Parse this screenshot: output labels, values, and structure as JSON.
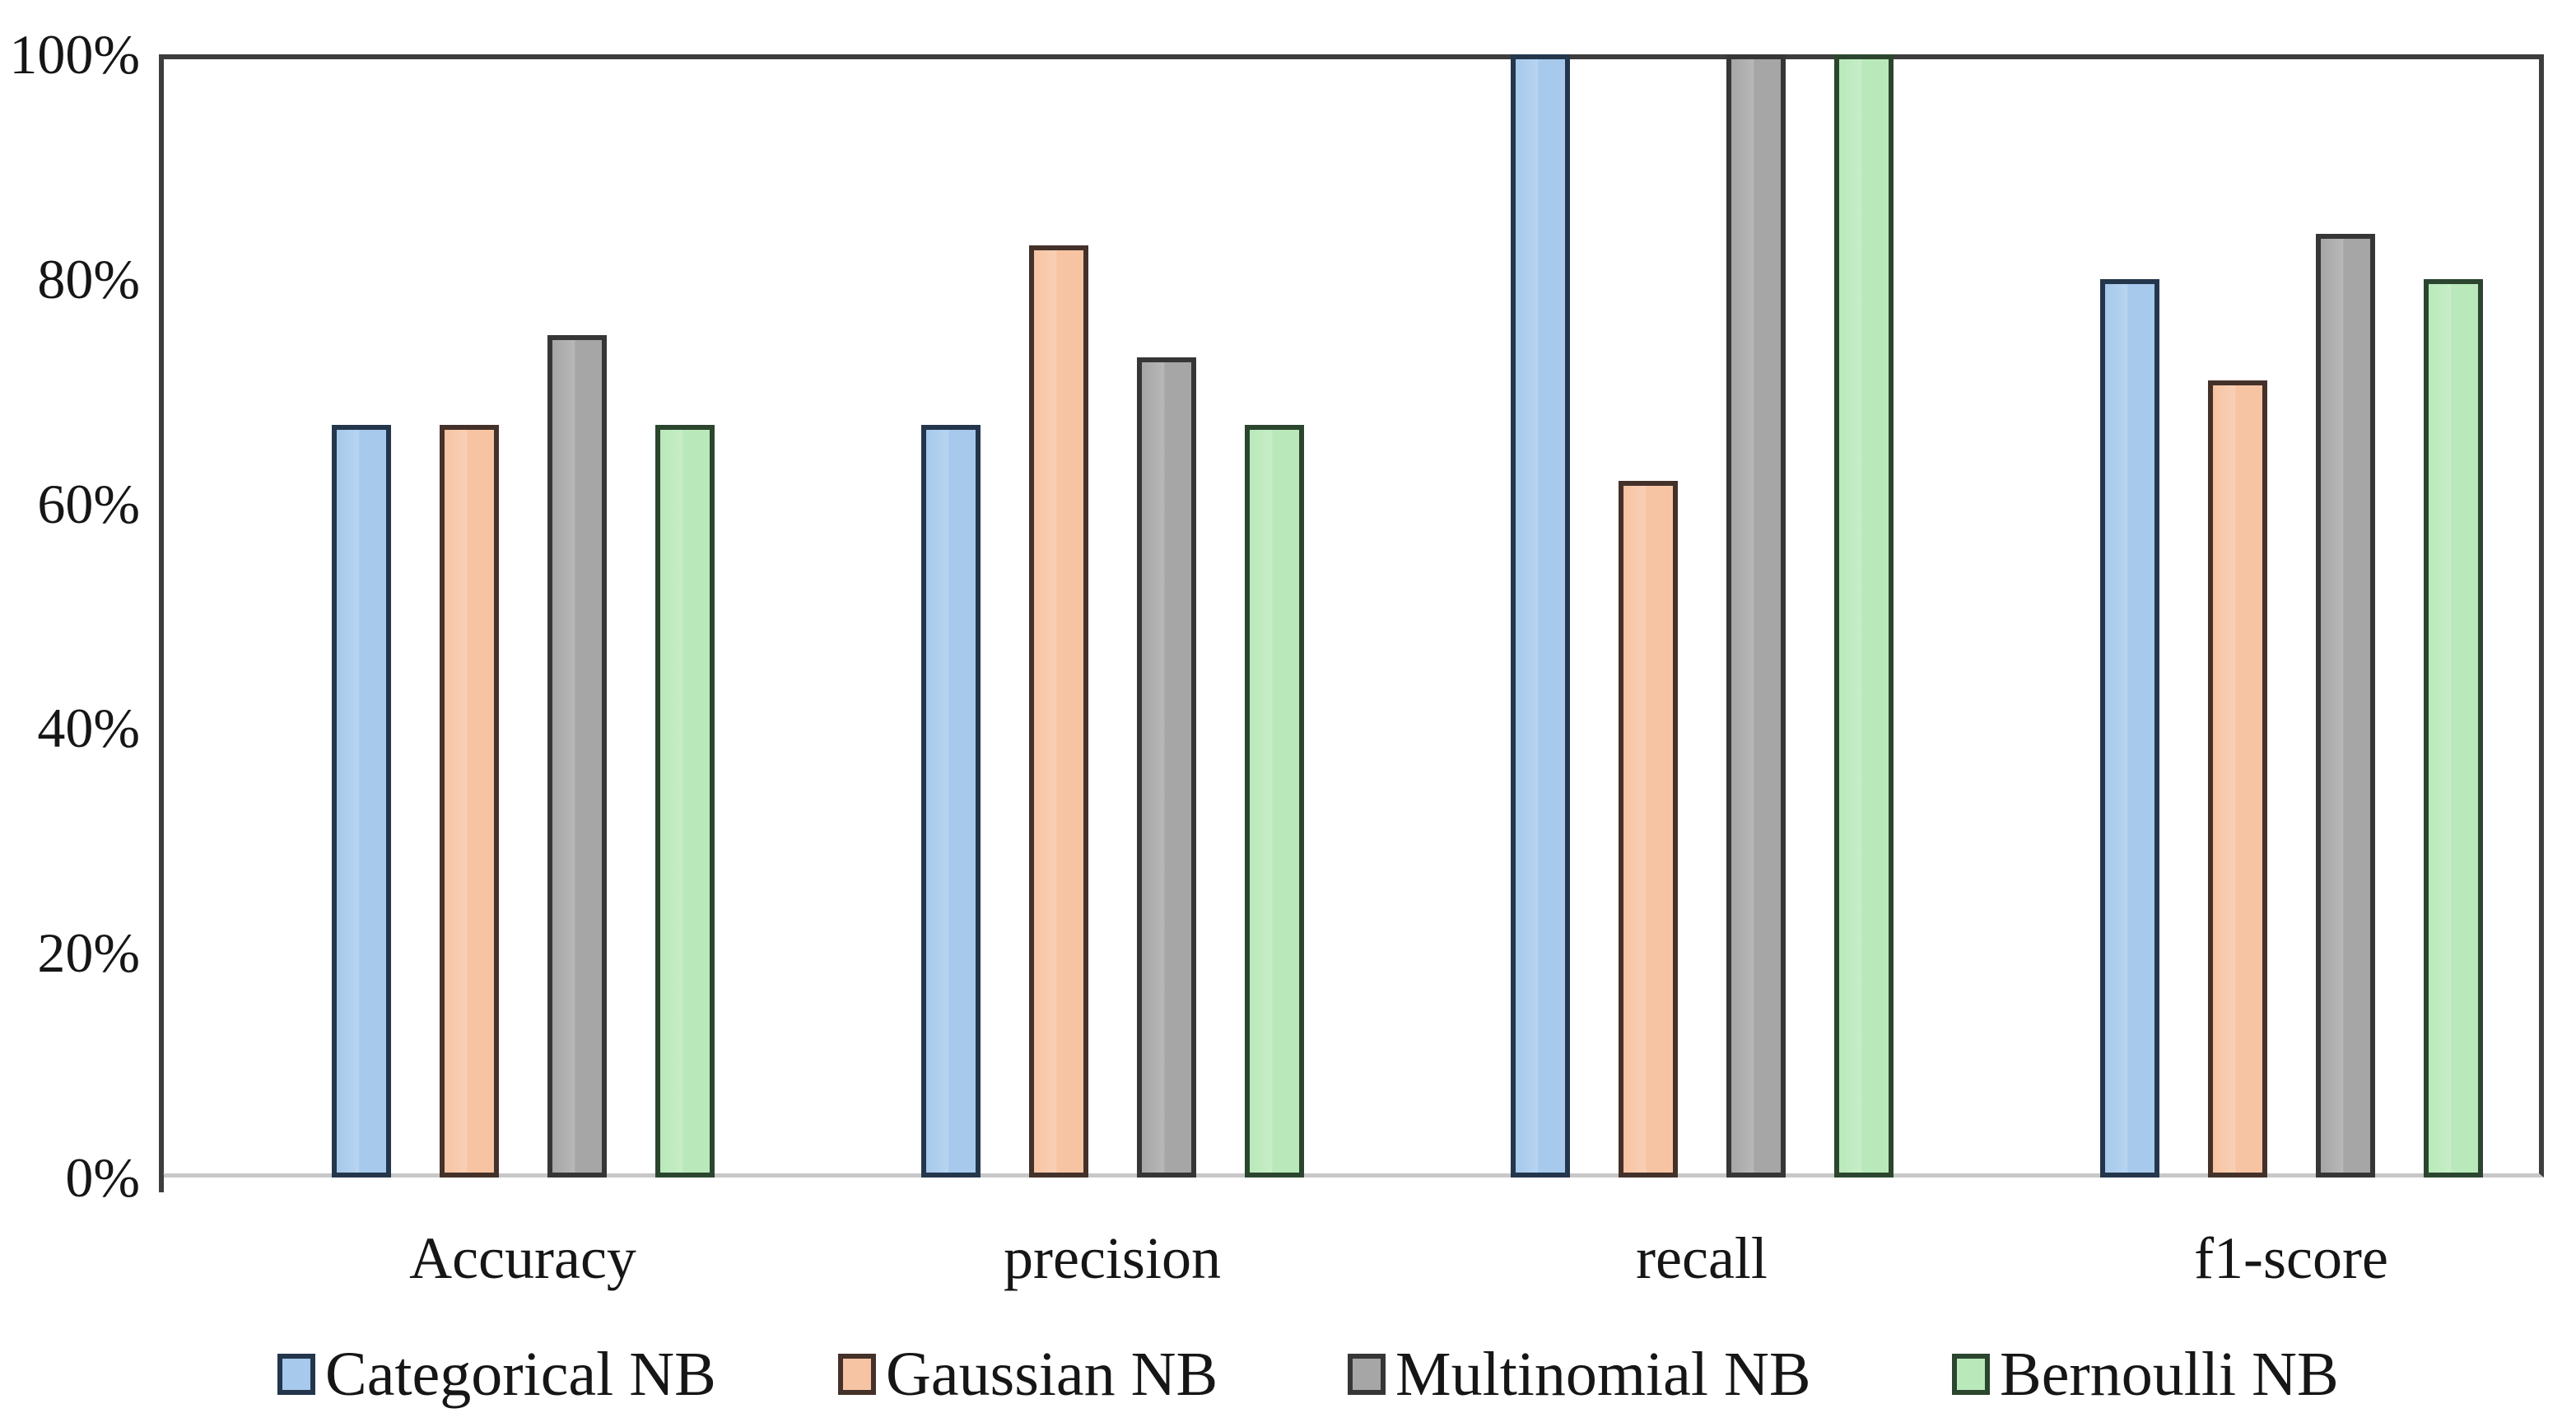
{
  "chart_data": {
    "type": "bar",
    "title": "",
    "categories": [
      "Accuracy",
      "precision",
      "recall",
      "f1-score"
    ],
    "series": [
      {
        "name": "Categorical NB",
        "color": "#a6c9ec",
        "border_color": "#24364c",
        "values": [
          67,
          67,
          100,
          80
        ]
      },
      {
        "name": "Gaussian NB",
        "color": "#f7c4a3",
        "border_color": "#44312a",
        "values": [
          67,
          83,
          62,
          71
        ]
      },
      {
        "name": "Multinomial NB",
        "color": "#a6a6a6",
        "border_color": "#363636",
        "values": [
          75,
          73,
          100,
          84
        ]
      },
      {
        "name": "Bernoulli NB",
        "color": "#b9e9ba",
        "border_color": "#2b452e",
        "values": [
          67,
          67,
          100,
          80
        ]
      }
    ],
    "unit": "%",
    "ylim": [
      0,
      100
    ],
    "y_ticks": [
      {
        "label": "100%",
        "value": 100
      },
      {
        "label": "80%",
        "value": 80
      },
      {
        "label": "60%",
        "value": 60
      },
      {
        "label": "40%",
        "value": 40
      },
      {
        "label": "20%",
        "value": 20
      },
      {
        "label": "0%",
        "value": 0
      }
    ],
    "legend_position": "bottom",
    "grid": false,
    "plot_border_color": "#3d3d3d",
    "baseline_color": "#c8c8c8",
    "background_color": "#ffffff",
    "text_color": "#161616"
  }
}
